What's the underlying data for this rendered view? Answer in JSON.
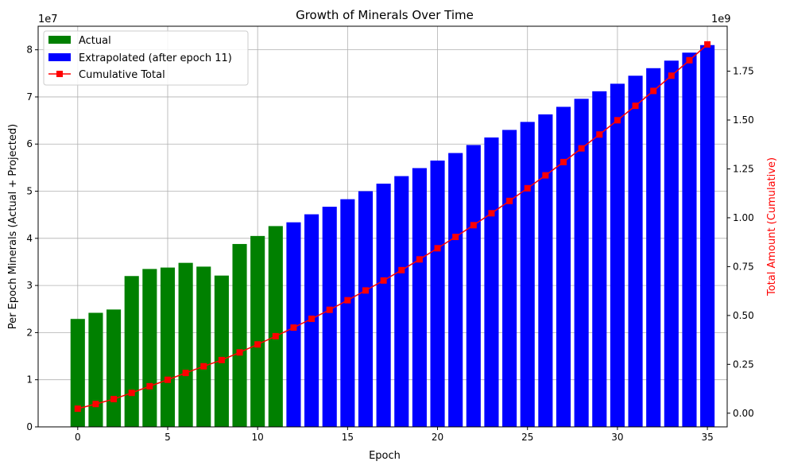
{
  "chart_data": {
    "type": "bar",
    "title": "Growth of Minerals Over Time",
    "xlabel": "Epoch",
    "ylabel_left": "Per Epoch Minerals (Actual + Projected)",
    "ylabel_right": "Total Amount (Cumulative)",
    "left_offset_label": "1e7",
    "right_offset_label": "1e9",
    "x": [
      0,
      1,
      2,
      3,
      4,
      5,
      6,
      7,
      8,
      9,
      10,
      11,
      12,
      13,
      14,
      15,
      16,
      17,
      18,
      19,
      20,
      21,
      22,
      23,
      24,
      25,
      26,
      27,
      28,
      29,
      30,
      31,
      32,
      33,
      34,
      35
    ],
    "xlim": [
      -2.2,
      36.1
    ],
    "xticks": [
      0,
      5,
      10,
      15,
      20,
      25,
      30,
      35
    ],
    "ylim_left": [
      0,
      8.5
    ],
    "yticks_left": [
      0,
      1,
      2,
      3,
      4,
      5,
      6,
      7,
      8
    ],
    "ylim_right": [
      -0.07,
      1.98
    ],
    "yticks_right": [
      "0.00",
      "0.25",
      "0.50",
      "0.75",
      "1.00",
      "1.25",
      "1.50",
      "1.75"
    ],
    "grid": true,
    "legend_position": "top-left",
    "colors": {
      "actual": "#008000",
      "extrapolated": "#0000ff",
      "cumulative": "#ff0000",
      "right_axis_label": "#ff0000"
    },
    "series": [
      {
        "name": "Actual",
        "kind": "bar",
        "unit": "1e7",
        "x": [
          0,
          1,
          2,
          3,
          4,
          5,
          6,
          7,
          8,
          9,
          10,
          11
        ],
        "values": [
          2.29,
          2.42,
          2.49,
          3.2,
          3.35,
          3.38,
          3.48,
          3.4,
          3.21,
          3.88,
          4.05,
          4.26
        ]
      },
      {
        "name": "Extrapolated (after epoch 11)",
        "kind": "bar",
        "unit": "1e7",
        "x": [
          12,
          13,
          14,
          15,
          16,
          17,
          18,
          19,
          20,
          21,
          22,
          23,
          24,
          25,
          26,
          27,
          28,
          29,
          30,
          31,
          32,
          33,
          34,
          35
        ],
        "values": [
          4.34,
          4.51,
          4.67,
          4.83,
          5.0,
          5.16,
          5.32,
          5.49,
          5.65,
          5.81,
          5.98,
          6.14,
          6.3,
          6.47,
          6.63,
          6.79,
          6.96,
          7.12,
          7.28,
          7.45,
          7.61,
          7.77,
          7.94,
          8.1
        ]
      },
      {
        "name": "Cumulative Total",
        "kind": "line",
        "marker": "square",
        "unit": "1e9",
        "x": [
          0,
          1,
          2,
          3,
          4,
          5,
          6,
          7,
          8,
          9,
          10,
          11,
          12,
          13,
          14,
          15,
          16,
          17,
          18,
          19,
          20,
          21,
          22,
          23,
          24,
          25,
          26,
          27,
          28,
          29,
          30,
          31,
          32,
          33,
          34,
          35
        ],
        "values": [
          0.023,
          0.047,
          0.072,
          0.104,
          0.138,
          0.171,
          0.206,
          0.24,
          0.272,
          0.311,
          0.352,
          0.394,
          0.438,
          0.483,
          0.529,
          0.578,
          0.628,
          0.679,
          0.732,
          0.787,
          0.844,
          0.902,
          0.962,
          1.023,
          1.086,
          1.151,
          1.217,
          1.285,
          1.355,
          1.426,
          1.499,
          1.573,
          1.649,
          1.727,
          1.806,
          1.887
        ]
      }
    ]
  }
}
